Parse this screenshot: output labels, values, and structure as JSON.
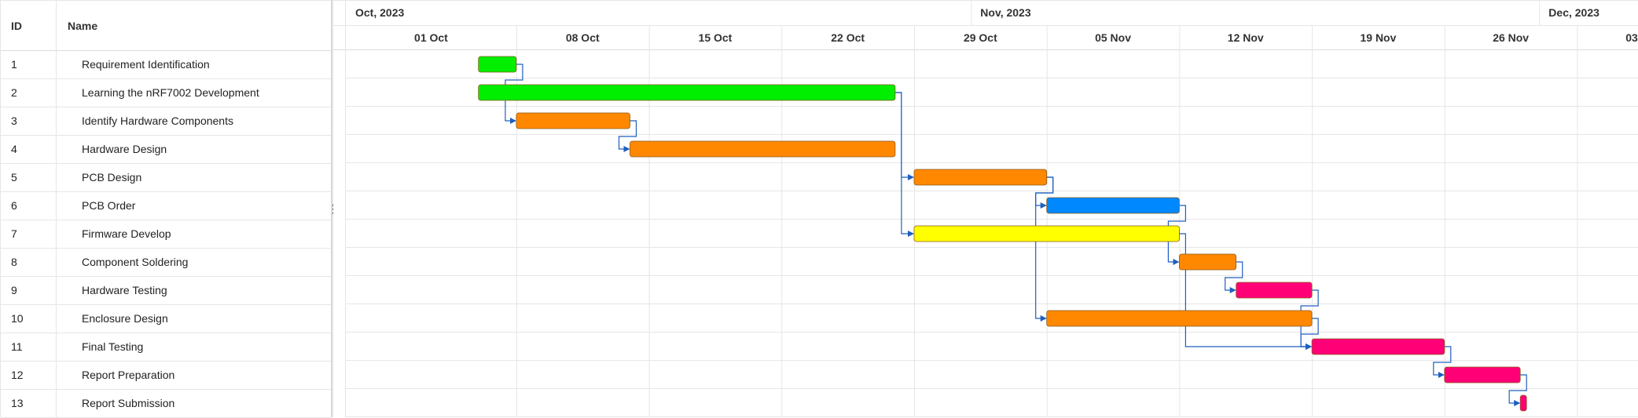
{
  "grid": {
    "columns": {
      "id": "ID",
      "name": "Name"
    },
    "rows": [
      {
        "id": "1",
        "name": "Requirement Identification"
      },
      {
        "id": "2",
        "name": "Learning the nRF7002 Development"
      },
      {
        "id": "3",
        "name": "Identify Hardware Components"
      },
      {
        "id": "4",
        "name": "Hardware Design"
      },
      {
        "id": "5",
        "name": "PCB Design"
      },
      {
        "id": "6",
        "name": "PCB Order"
      },
      {
        "id": "7",
        "name": "Firmware Develop"
      },
      {
        "id": "8",
        "name": "Component Soldering"
      },
      {
        "id": "9",
        "name": "Hardware Testing"
      },
      {
        "id": "10",
        "name": "Enclosure Design"
      },
      {
        "id": "11",
        "name": "Final Testing"
      },
      {
        "id": "12",
        "name": "Report Preparation"
      },
      {
        "id": "13",
        "name": "Report Submission"
      }
    ]
  },
  "splitter": {
    "handle_glyph": "⋮"
  },
  "timeline": {
    "months": [
      {
        "label": "Oct, 2023",
        "start": "2023-09-29"
      },
      {
        "label": "Nov, 2023",
        "start": "2023-11-01"
      },
      {
        "label": "Dec, 2023",
        "start": "2023-12-01"
      }
    ],
    "weeks": [
      {
        "label": "01 Oct",
        "start": "2023-09-29"
      },
      {
        "label": "08 Oct",
        "start": "2023-10-08"
      },
      {
        "label": "15 Oct",
        "start": "2023-10-15"
      },
      {
        "label": "22 Oct",
        "start": "2023-10-22"
      },
      {
        "label": "29 Oct",
        "start": "2023-10-29"
      },
      {
        "label": "05 Nov",
        "start": "2023-11-05"
      },
      {
        "label": "12 Nov",
        "start": "2023-11-12"
      },
      {
        "label": "19 Nov",
        "start": "2023-11-19"
      },
      {
        "label": "26 Nov",
        "start": "2023-11-26"
      },
      {
        "label": "03 Dec",
        "start": "2023-12-03"
      }
    ],
    "range_start": "2023-09-29",
    "range_end": "2023-12-10"
  },
  "tasks": [
    {
      "row": 1,
      "start": "2023-10-06",
      "end": "2023-10-08",
      "color": "#00ee00"
    },
    {
      "row": 2,
      "start": "2023-10-06",
      "end": "2023-10-28",
      "color": "#00ee00"
    },
    {
      "row": 3,
      "start": "2023-10-08",
      "end": "2023-10-14",
      "color": "#ff8800"
    },
    {
      "row": 4,
      "start": "2023-10-14",
      "end": "2023-10-28",
      "color": "#ff8800"
    },
    {
      "row": 5,
      "start": "2023-10-29",
      "end": "2023-11-05",
      "color": "#ff8800"
    },
    {
      "row": 6,
      "start": "2023-11-05",
      "end": "2023-11-12",
      "color": "#0088ff"
    },
    {
      "row": 7,
      "start": "2023-10-29",
      "end": "2023-11-12",
      "color": "#ffff00"
    },
    {
      "row": 8,
      "start": "2023-11-12",
      "end": "2023-11-15",
      "color": "#ff8800"
    },
    {
      "row": 9,
      "start": "2023-11-15",
      "end": "2023-11-19",
      "color": "#ff0077"
    },
    {
      "row": 10,
      "start": "2023-11-05",
      "end": "2023-11-19",
      "color": "#ff8800"
    },
    {
      "row": 11,
      "start": "2023-11-19",
      "end": "2023-11-26",
      "color": "#ff0077"
    },
    {
      "row": 12,
      "start": "2023-11-26",
      "end": "2023-11-30",
      "color": "#ff0077"
    },
    {
      "row": 13,
      "start": "2023-11-30",
      "end": "2023-11-30",
      "color": "#ff0077"
    }
  ],
  "dependencies": [
    {
      "from": 1,
      "to": 3
    },
    {
      "from": 3,
      "to": 4
    },
    {
      "from": 2,
      "to": 5
    },
    {
      "from": 2,
      "to": 7
    },
    {
      "from": 5,
      "to": 6
    },
    {
      "from": 5,
      "to": 10
    },
    {
      "from": 6,
      "to": 8
    },
    {
      "from": 8,
      "to": 9
    },
    {
      "from": 7,
      "to": 11
    },
    {
      "from": 9,
      "to": 11
    },
    {
      "from": 10,
      "to": 11
    },
    {
      "from": 11,
      "to": 12
    },
    {
      "from": 12,
      "to": 13
    }
  ],
  "colors": {
    "connector": "#1f5fbf",
    "bar_border": "#8a5a1a",
    "grid_line": "#e6e6e6"
  }
}
